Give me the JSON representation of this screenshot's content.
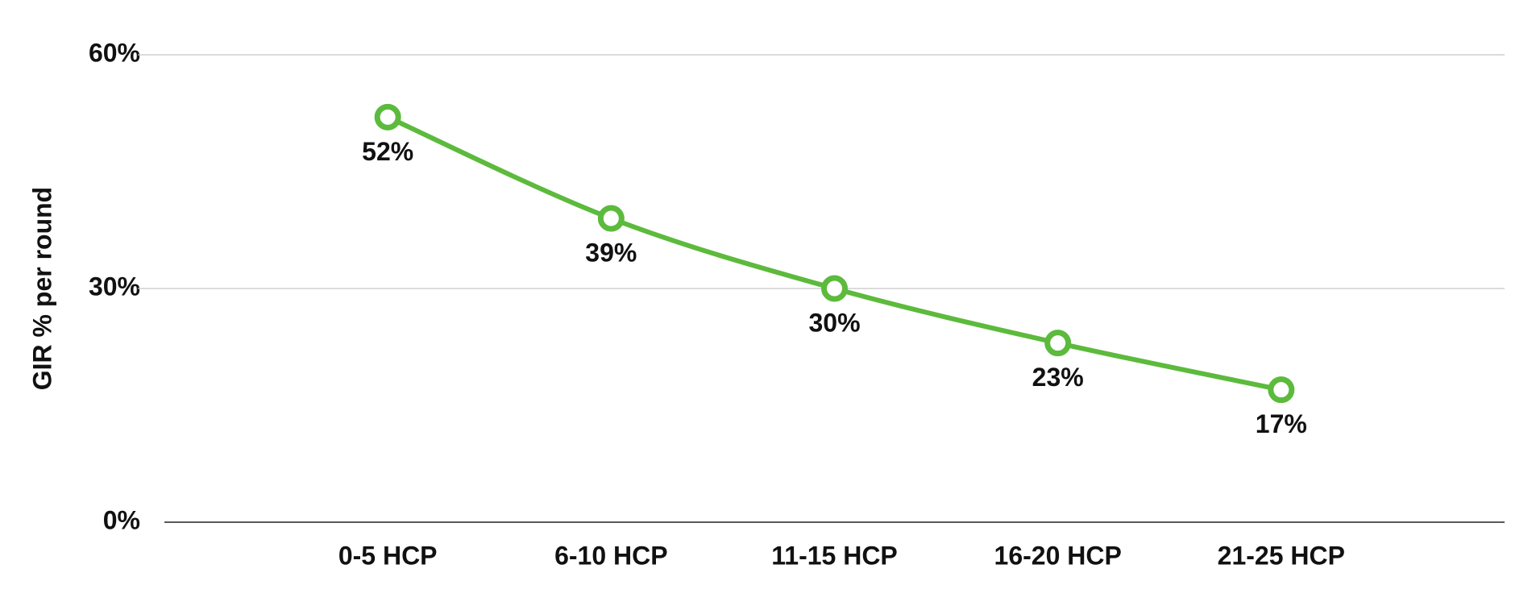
{
  "chart_data": {
    "type": "line",
    "y_label": "GIR % per round",
    "categories": [
      "0-5 HCP",
      "6-10 HCP",
      "11-15 HCP",
      "16-20 HCP",
      "21-25 HCP"
    ],
    "series": [
      {
        "color": "#5cba3c",
        "values": [
          52,
          39,
          30,
          23,
          17
        ],
        "value_labels": [
          "52%",
          "39%",
          "30%",
          "23%",
          "17%"
        ]
      }
    ],
    "ylim": [
      0,
      60
    ],
    "yticks": [
      {
        "value": 0,
        "label": "0%"
      },
      {
        "value": 30,
        "label": "30%"
      },
      {
        "value": 60,
        "label": "60%"
      }
    ],
    "grid": true
  }
}
